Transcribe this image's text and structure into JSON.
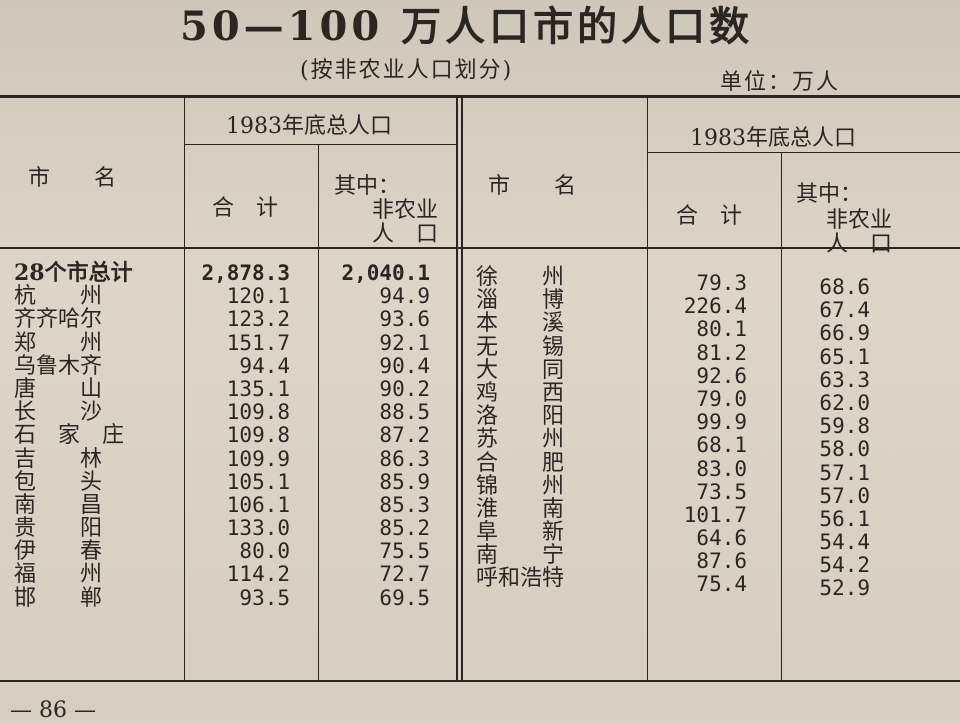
{
  "title": "50—100 万人口市的人口数",
  "subtitle": "(按非农业人口划分)",
  "unit": "单位：万人",
  "header": {
    "city_name": "市　　名",
    "group_label": "1983年底总人口",
    "total_label": "合　计",
    "nonag_label_1": "其中：",
    "nonag_label_2": "非农业",
    "nonag_label_3": "人　口"
  },
  "left_rows": [
    {
      "name": "28个市总计",
      "total": "2,878.3",
      "nonag": "2,040.1"
    },
    {
      "name": "杭　　州",
      "total": "120.1",
      "nonag": "94.9"
    },
    {
      "name": "齐齐哈尔",
      "total": "123.2",
      "nonag": "93.6"
    },
    {
      "name": "郑　　州",
      "total": "151.7",
      "nonag": "92.1"
    },
    {
      "name": "乌鲁木齐",
      "total": "94.4",
      "nonag": "90.4"
    },
    {
      "name": "唐　　山",
      "total": "135.1",
      "nonag": "90.2"
    },
    {
      "name": "长　　沙",
      "total": "109.8",
      "nonag": "88.5"
    },
    {
      "name": "石　家　庄",
      "total": "109.8",
      "nonag": "87.2"
    },
    {
      "name": "吉　　林",
      "total": "109.9",
      "nonag": "86.3"
    },
    {
      "name": "包　　头",
      "total": "105.1",
      "nonag": "85.9"
    },
    {
      "name": "南　　昌",
      "total": "106.1",
      "nonag": "85.3"
    },
    {
      "name": "贵　　阳",
      "total": "133.0",
      "nonag": "85.2"
    },
    {
      "name": "伊　　春",
      "total": "80.0",
      "nonag": "75.5"
    },
    {
      "name": "福　　州",
      "total": "114.2",
      "nonag": "72.7"
    },
    {
      "name": "邯　　郸",
      "total": "93.5",
      "nonag": "69.5"
    }
  ],
  "right_rows": [
    {
      "name": "徐　　州",
      "total": "79.3",
      "nonag": "68.6"
    },
    {
      "name": "淄　　博",
      "total": "226.4",
      "nonag": "67.4"
    },
    {
      "name": "本　　溪",
      "total": "80.1",
      "nonag": "66.9"
    },
    {
      "name": "无　　锡",
      "total": "81.2",
      "nonag": "65.1"
    },
    {
      "name": "大　　同",
      "total": "92.6",
      "nonag": "63.3"
    },
    {
      "name": "鸡　　西",
      "total": "79.0",
      "nonag": "62.0"
    },
    {
      "name": "洛　　阳",
      "total": "99.9",
      "nonag": "59.8"
    },
    {
      "name": "苏　　州",
      "total": "68.1",
      "nonag": "58.0"
    },
    {
      "name": "合　　肥",
      "total": "83.0",
      "nonag": "57.1"
    },
    {
      "name": "锦　　州",
      "total": "73.5",
      "nonag": "57.0"
    },
    {
      "name": "淮　　南",
      "total": "101.7",
      "nonag": "56.1"
    },
    {
      "name": "阜　　新",
      "total": "64.6",
      "nonag": "54.4"
    },
    {
      "name": "南　　宁",
      "total": "87.6",
      "nonag": "54.2"
    },
    {
      "name": "呼和浩特",
      "total": "75.4",
      "nonag": "52.9"
    }
  ],
  "page_number": "— 86 —"
}
